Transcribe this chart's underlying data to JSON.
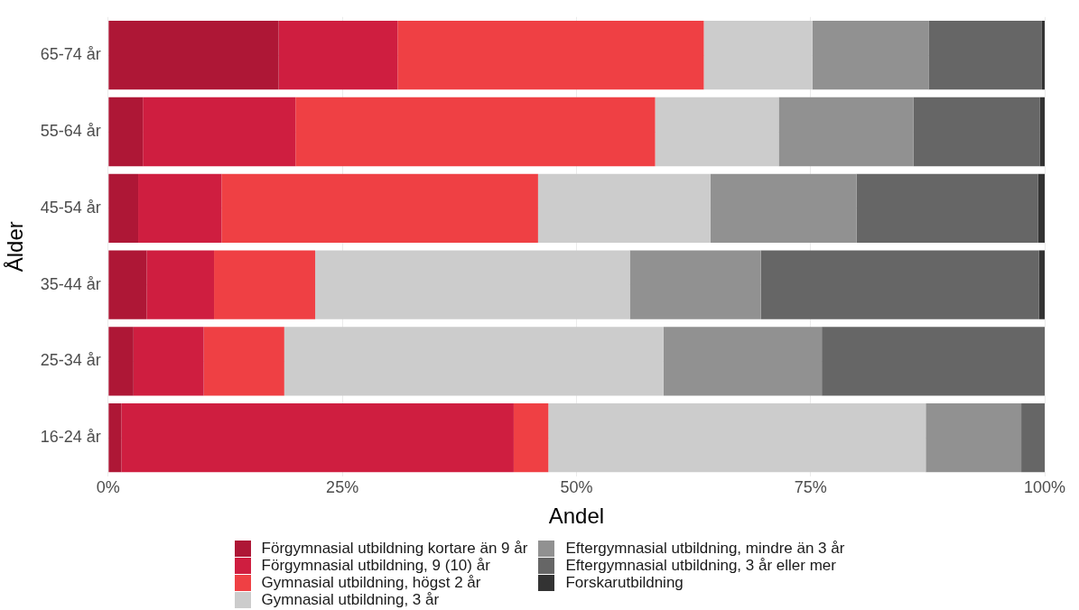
{
  "chart_data": {
    "type": "bar",
    "orientation": "horizontal",
    "stacked": true,
    "xlabel": "Andel",
    "ylabel": "Ålder",
    "categories": [
      "65-74 år",
      "55-64 år",
      "45-54 år",
      "35-44 år",
      "25-34 år",
      "16-24 år"
    ],
    "xlim": [
      0,
      100
    ],
    "xticks": [
      {
        "value": 0,
        "label": "0%"
      },
      {
        "value": 25,
        "label": "25%"
      },
      {
        "value": 50,
        "label": "50%"
      },
      {
        "value": 75,
        "label": "75%"
      },
      {
        "value": 100,
        "label": "100%"
      }
    ],
    "grid": true,
    "legend": "bottom",
    "series": [
      {
        "name": "Förgymnasial utbildning kortare än 9 år",
        "color": "#ae1736",
        "values": [
          18.2,
          3.7,
          3.2,
          4.1,
          2.7,
          1.4
        ]
      },
      {
        "name": "Förgymnasial utbildning, 9 (10) år",
        "color": "#cf1e40",
        "values": [
          12.7,
          16.3,
          8.9,
          7.2,
          7.5,
          41.9
        ]
      },
      {
        "name": "Gymnasial utbildning, högst 2 år",
        "color": "#ef4044",
        "values": [
          32.7,
          38.4,
          33.8,
          10.8,
          8.6,
          3.7
        ]
      },
      {
        "name": "Gymnasial utbildning, 3 år",
        "color": "#cccccc",
        "values": [
          11.6,
          13.2,
          18.4,
          33.6,
          40.5,
          40.3
        ]
      },
      {
        "name": "Eftergymnasial utbildning, mindre än 3 år",
        "color": "#919191",
        "values": [
          12.4,
          14.4,
          15.6,
          14.0,
          16.9,
          10.2
        ]
      },
      {
        "name": "Eftergymnasial utbildning, 3 år eller mer",
        "color": "#666666",
        "values": [
          12.1,
          13.5,
          19.4,
          29.7,
          23.8,
          2.5
        ]
      },
      {
        "name": "Forskarutbildning",
        "color": "#333333",
        "values": [
          0.3,
          0.5,
          0.7,
          0.6,
          0,
          0
        ]
      }
    ]
  }
}
